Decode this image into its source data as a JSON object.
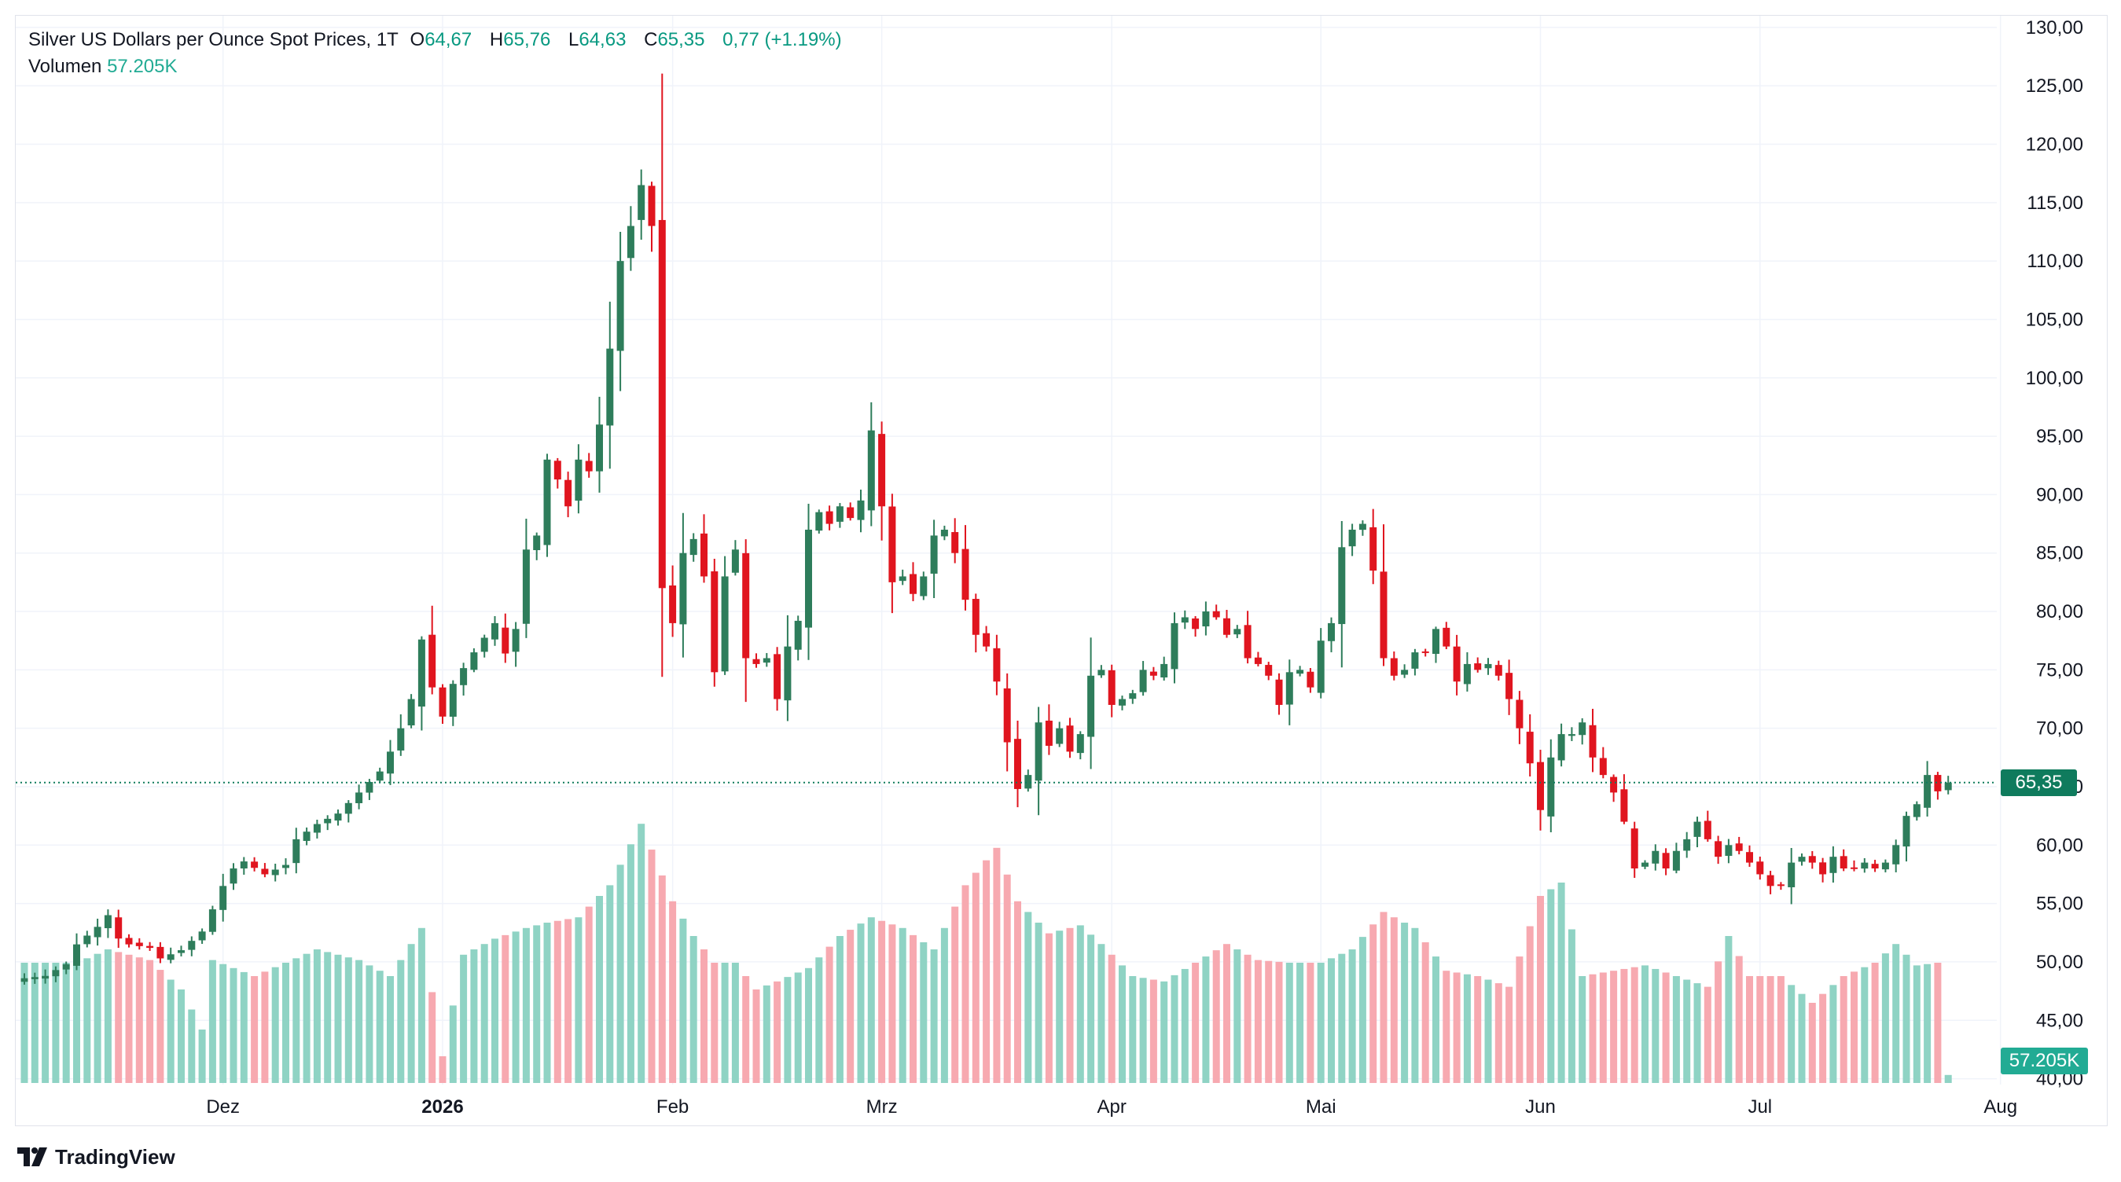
{
  "legend": {
    "symbol": "Silver US Dollars per Ounce Spot Prices, 1T",
    "o_label": "O",
    "o_value": "64,67",
    "h_label": "H",
    "h_value": "65,76",
    "l_label": "L",
    "l_value": "64,63",
    "c_label": "C",
    "c_value": "65,35",
    "change": "0,77 (+1.19%)",
    "volume_label": "Volumen",
    "volume_value": "57.205K"
  },
  "price_label": "65,35",
  "volume_label": "57.205K",
  "brand": "TradingView",
  "colors": {
    "up": "#2e7d5b",
    "down": "#e0151f",
    "vol_up": "#8fd3c4",
    "vol_down": "#f7a9b0",
    "grid": "#f0f3fa",
    "last_price": "#0f7b5d",
    "volume_badge": "#22ab94"
  },
  "chart_data": {
    "type": "candlestick",
    "title": "Silver US Dollars per Ounce Spot Prices, 1T",
    "y_ticks": [
      "130,00",
      "125,00",
      "120,00",
      "115,00",
      "110,00",
      "105,00",
      "100,00",
      "95,00",
      "90,00",
      "85,00",
      "80,00",
      "75,00",
      "70,00",
      "65,00",
      "60,00",
      "55,00",
      "50,00",
      "45,00",
      "40,00"
    ],
    "y_tick_values": [
      130,
      125,
      120,
      115,
      110,
      105,
      100,
      95,
      90,
      85,
      80,
      75,
      70,
      65,
      60,
      55,
      50,
      45,
      40
    ],
    "ylim": [
      39.5,
      131
    ],
    "x_labels": [
      {
        "label": "Dez",
        "bar": 19,
        "bold": false
      },
      {
        "label": "2026",
        "bar": 40,
        "bold": true
      },
      {
        "label": "Feb",
        "bar": 62,
        "bold": false
      },
      {
        "label": "Mrz",
        "bar": 82,
        "bold": false
      },
      {
        "label": "Apr",
        "bar": 104,
        "bold": false
      },
      {
        "label": "Mai",
        "bar": 124,
        "bold": false
      },
      {
        "label": "Jun",
        "bar": 145,
        "bold": false
      },
      {
        "label": "Jul",
        "bar": 166,
        "bold": false
      },
      {
        "label": "Aug",
        "bar": 189,
        "bold": false
      }
    ],
    "last_price": 65.35,
    "close_anchors": [
      [
        0,
        48.6
      ],
      [
        2,
        48.8
      ],
      [
        4,
        49.8
      ],
      [
        5,
        51.5
      ],
      [
        7,
        53.0
      ],
      [
        8,
        54.0
      ],
      [
        9,
        52.0
      ],
      [
        10,
        51.5
      ],
      [
        12,
        51.2
      ],
      [
        13,
        50.3
      ],
      [
        15,
        51.0
      ],
      [
        16,
        51.8
      ],
      [
        17,
        52.6
      ],
      [
        18,
        54.5
      ],
      [
        19,
        56.5
      ],
      [
        20,
        58.0
      ],
      [
        21,
        58.6
      ],
      [
        23,
        57.5
      ],
      [
        25,
        58.3
      ],
      [
        26,
        60.5
      ],
      [
        28,
        61.8
      ],
      [
        30,
        62.7
      ],
      [
        32,
        64.5
      ],
      [
        34,
        66.3
      ],
      [
        35,
        68.0
      ],
      [
        36,
        70.0
      ],
      [
        37,
        72.5
      ],
      [
        38,
        77.6
      ],
      [
        39,
        73.5
      ],
      [
        40,
        71.0
      ],
      [
        41,
        73.8
      ],
      [
        43,
        76.5
      ],
      [
        45,
        79.0
      ],
      [
        46,
        76.4
      ],
      [
        47,
        78.5
      ],
      [
        48,
        85.3
      ],
      [
        49,
        86.5
      ],
      [
        50,
        93.0
      ],
      [
        51,
        91.3
      ],
      [
        52,
        89.0
      ],
      [
        53,
        93.0
      ],
      [
        54,
        92.0
      ],
      [
        55,
        96.0
      ],
      [
        56,
        102.5
      ],
      [
        57,
        110.0
      ],
      [
        58,
        113.0
      ],
      [
        59,
        116.5
      ],
      [
        60,
        113.0
      ],
      [
        61,
        82.0
      ],
      [
        62,
        79.0
      ],
      [
        63,
        85.0
      ],
      [
        64,
        86.2
      ],
      [
        65,
        83.0
      ],
      [
        66,
        74.8
      ],
      [
        67,
        83.0
      ],
      [
        68,
        85.3
      ],
      [
        69,
        76.0
      ],
      [
        70,
        75.5
      ],
      [
        71,
        76.0
      ],
      [
        72,
        72.5
      ],
      [
        73,
        77.0
      ],
      [
        74,
        79.2
      ],
      [
        75,
        87.0
      ],
      [
        76,
        88.5
      ],
      [
        77,
        87.5
      ],
      [
        78,
        89.0
      ],
      [
        79,
        88.0
      ],
      [
        80,
        89.5
      ],
      [
        81,
        95.5
      ],
      [
        82,
        89.0
      ],
      [
        83,
        82.5
      ],
      [
        84,
        83.0
      ],
      [
        85,
        81.5
      ],
      [
        86,
        83.0
      ],
      [
        87,
        86.5
      ],
      [
        88,
        87.0
      ],
      [
        89,
        85.0
      ],
      [
        90,
        81.0
      ],
      [
        91,
        78.0
      ],
      [
        92,
        77.0
      ],
      [
        93,
        74.0
      ],
      [
        94,
        68.8
      ],
      [
        95,
        64.8
      ],
      [
        96,
        66.0
      ],
      [
        97,
        70.5
      ],
      [
        98,
        68.5
      ],
      [
        99,
        70.0
      ],
      [
        100,
        68.0
      ],
      [
        101,
        69.5
      ],
      [
        102,
        74.5
      ],
      [
        103,
        75.0
      ],
      [
        104,
        72.0
      ],
      [
        105,
        72.5
      ],
      [
        106,
        73.0
      ],
      [
        107,
        75.0
      ],
      [
        108,
        74.5
      ],
      [
        109,
        75.5
      ],
      [
        110,
        79.0
      ],
      [
        111,
        79.5
      ],
      [
        112,
        78.5
      ],
      [
        113,
        80.0
      ],
      [
        114,
        79.5
      ],
      [
        115,
        78.0
      ],
      [
        116,
        78.5
      ],
      [
        117,
        76.0
      ],
      [
        118,
        75.5
      ],
      [
        119,
        74.5
      ],
      [
        120,
        72.0
      ],
      [
        121,
        74.8
      ],
      [
        122,
        75.0
      ],
      [
        123,
        73.5
      ],
      [
        124,
        77.5
      ],
      [
        125,
        79.0
      ],
      [
        126,
        85.5
      ],
      [
        127,
        87.0
      ],
      [
        128,
        87.5
      ],
      [
        129,
        83.5
      ],
      [
        130,
        76.0
      ],
      [
        131,
        74.5
      ],
      [
        132,
        75.0
      ],
      [
        133,
        76.5
      ],
      [
        134,
        76.5
      ],
      [
        135,
        78.5
      ],
      [
        136,
        77.0
      ],
      [
        137,
        74.0
      ],
      [
        138,
        75.5
      ],
      [
        139,
        75.0
      ],
      [
        140,
        75.5
      ],
      [
        141,
        74.5
      ],
      [
        142,
        72.5
      ],
      [
        143,
        70.0
      ],
      [
        144,
        67.0
      ],
      [
        145,
        63.0
      ],
      [
        146,
        67.5
      ],
      [
        147,
        69.5
      ],
      [
        148,
        69.5
      ],
      [
        149,
        70.5
      ],
      [
        150,
        67.5
      ],
      [
        151,
        66.0
      ],
      [
        152,
        64.5
      ],
      [
        153,
        62.0
      ],
      [
        154,
        58.0
      ],
      [
        155,
        58.5
      ],
      [
        156,
        59.5
      ],
      [
        157,
        58.0
      ],
      [
        158,
        59.5
      ],
      [
        159,
        60.5
      ],
      [
        160,
        62.0
      ],
      [
        161,
        60.5
      ],
      [
        162,
        59.0
      ],
      [
        163,
        60.0
      ],
      [
        164,
        59.5
      ],
      [
        165,
        58.5
      ],
      [
        166,
        57.5
      ],
      [
        167,
        56.5
      ],
      [
        168,
        56.5
      ],
      [
        169,
        58.5
      ],
      [
        170,
        59.0
      ],
      [
        171,
        58.5
      ],
      [
        172,
        57.5
      ],
      [
        173,
        59.0
      ],
      [
        174,
        58.0
      ],
      [
        175,
        58.0
      ],
      [
        176,
        58.5
      ],
      [
        177,
        58.0
      ],
      [
        178,
        58.5
      ],
      [
        179,
        60.0
      ],
      [
        180,
        62.5
      ],
      [
        181,
        63.5
      ],
      [
        182,
        66.0
      ],
      [
        183,
        64.6
      ],
      [
        184,
        65.35
      ]
    ],
    "volume_anchors": [
      [
        0,
        0.45
      ],
      [
        5,
        0.45
      ],
      [
        8,
        0.5
      ],
      [
        12,
        0.46
      ],
      [
        15,
        0.35
      ],
      [
        17,
        0.2
      ],
      [
        18,
        0.46
      ],
      [
        22,
        0.4
      ],
      [
        25,
        0.45
      ],
      [
        28,
        0.5
      ],
      [
        32,
        0.46
      ],
      [
        35,
        0.4
      ],
      [
        38,
        0.58
      ],
      [
        40,
        0.1
      ],
      [
        42,
        0.48
      ],
      [
        45,
        0.54
      ],
      [
        48,
        0.58
      ],
      [
        50,
        0.6
      ],
      [
        53,
        0.62
      ],
      [
        56,
        0.74
      ],
      [
        59,
        0.97
      ],
      [
        62,
        0.68
      ],
      [
        64,
        0.55
      ],
      [
        66,
        0.45
      ],
      [
        68,
        0.45
      ],
      [
        70,
        0.35
      ],
      [
        72,
        0.38
      ],
      [
        75,
        0.43
      ],
      [
        78,
        0.55
      ],
      [
        81,
        0.62
      ],
      [
        84,
        0.58
      ],
      [
        87,
        0.5
      ],
      [
        90,
        0.74
      ],
      [
        93,
        0.88
      ],
      [
        95,
        0.68
      ],
      [
        98,
        0.56
      ],
      [
        101,
        0.59
      ],
      [
        103,
        0.52
      ],
      [
        106,
        0.4
      ],
      [
        109,
        0.38
      ],
      [
        112,
        0.45
      ],
      [
        115,
        0.52
      ],
      [
        118,
        0.46
      ],
      [
        121,
        0.45
      ],
      [
        124,
        0.45
      ],
      [
        127,
        0.5
      ],
      [
        130,
        0.64
      ],
      [
        133,
        0.58
      ],
      [
        136,
        0.42
      ],
      [
        139,
        0.4
      ],
      [
        142,
        0.36
      ],
      [
        145,
        0.7
      ],
      [
        147,
        0.75
      ],
      [
        149,
        0.4
      ],
      [
        152,
        0.42
      ],
      [
        155,
        0.44
      ],
      [
        158,
        0.4
      ],
      [
        161,
        0.36
      ],
      [
        163,
        0.55
      ],
      [
        165,
        0.4
      ],
      [
        168,
        0.4
      ],
      [
        171,
        0.3
      ],
      [
        174,
        0.4
      ],
      [
        177,
        0.45
      ],
      [
        179,
        0.52
      ],
      [
        181,
        0.44
      ],
      [
        183,
        0.45
      ],
      [
        184,
        0.03
      ]
    ],
    "volume_scale_note": "relative volume (0-1), no volume axis printed",
    "grid": true,
    "legend_position": "top-left"
  }
}
